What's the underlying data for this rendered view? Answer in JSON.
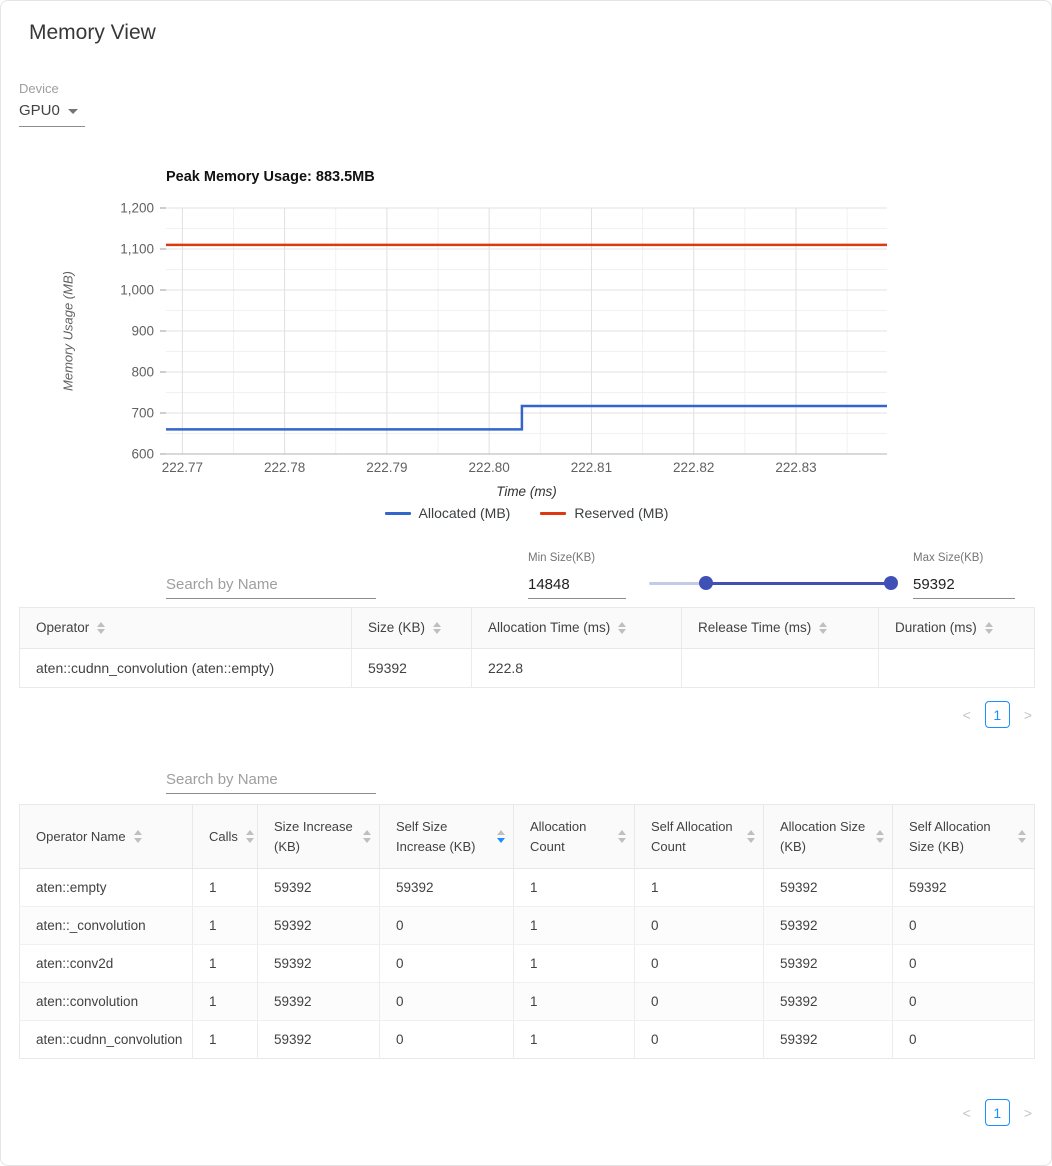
{
  "page": {
    "title": "Memory View"
  },
  "device": {
    "label": "Device",
    "value": "GPU0"
  },
  "chart_data": {
    "type": "line",
    "title": "Peak Memory Usage: 883.5MB",
    "xlabel": "Time (ms)",
    "ylabel": "Memory Usage (MB)",
    "xlim": [
      222.7684,
      222.8389
    ],
    "ylim": [
      600,
      1200
    ],
    "x_ticks": [
      222.77,
      222.78,
      222.79,
      222.8,
      222.81,
      222.82,
      222.83
    ],
    "x_tick_labels": [
      "222.77",
      "222.78",
      "222.79",
      "222.80",
      "222.81",
      "222.82",
      "222.83"
    ],
    "y_ticks": [
      600,
      700,
      800,
      900,
      1000,
      1100,
      1200
    ],
    "y_tick_labels": [
      "600",
      "700",
      "800",
      "900",
      "1,000",
      "1,100",
      "1,200"
    ],
    "grid": true,
    "legend_position": "bottom",
    "series": [
      {
        "name": "Allocated (MB)",
        "color": "#3366cc",
        "points": [
          [
            222.7684,
            660
          ],
          [
            222.8032,
            660
          ],
          [
            222.8032,
            717
          ],
          [
            222.8389,
            717
          ]
        ]
      },
      {
        "name": "Reserved (MB)",
        "color": "#dc3912",
        "points": [
          [
            222.7684,
            1110
          ],
          [
            222.8389,
            1110
          ]
        ]
      }
    ]
  },
  "filter": {
    "search_placeholder": "Search by Name",
    "min_size": {
      "label": "Min Size(KB)",
      "value": "14848"
    },
    "max_size": {
      "label": "Max Size(KB)",
      "value": "59392"
    },
    "slider": {
      "min_percent": 23,
      "max_percent": 98
    }
  },
  "events_table": {
    "columns": [
      {
        "label": "Operator",
        "sort": "none"
      },
      {
        "label": "Size (KB)",
        "sort": "none"
      },
      {
        "label": "Allocation Time (ms)",
        "sort": "none"
      },
      {
        "label": "Release Time (ms)",
        "sort": "none"
      },
      {
        "label": "Duration (ms)",
        "sort": "none"
      }
    ],
    "rows": [
      [
        "aten::cudnn_convolution (aten::empty)",
        "59392",
        "222.8",
        "",
        ""
      ]
    ],
    "pagination": {
      "prev_icon": "<",
      "page": "1",
      "next_icon": ">"
    }
  },
  "stats_table": {
    "search_placeholder": "Search by Name",
    "columns": [
      {
        "label": "Operator Name",
        "sort": "none"
      },
      {
        "label": "Calls",
        "sort": "none"
      },
      {
        "label": "Size Increase (KB)",
        "sort": "none"
      },
      {
        "label": "Self Size Increase (KB)",
        "sort": "desc"
      },
      {
        "label": "Allocation Count",
        "sort": "none"
      },
      {
        "label": "Self Allocation Count",
        "sort": "none"
      },
      {
        "label": "Allocation Size (KB)",
        "sort": "none"
      },
      {
        "label": "Self Allocation Size (KB)",
        "sort": "none"
      }
    ],
    "rows": [
      [
        "aten::empty",
        "1",
        "59392",
        "59392",
        "1",
        "1",
        "59392",
        "59392"
      ],
      [
        "aten::_convolution",
        "1",
        "59392",
        "0",
        "1",
        "0",
        "59392",
        "0"
      ],
      [
        "aten::conv2d",
        "1",
        "59392",
        "0",
        "1",
        "0",
        "59392",
        "0"
      ],
      [
        "aten::convolution",
        "1",
        "59392",
        "0",
        "1",
        "0",
        "59392",
        "0"
      ],
      [
        "aten::cudnn_convolution",
        "1",
        "59392",
        "0",
        "1",
        "0",
        "59392",
        "0"
      ]
    ],
    "pagination": {
      "prev_icon": "<",
      "page": "1",
      "next_icon": ">"
    }
  }
}
